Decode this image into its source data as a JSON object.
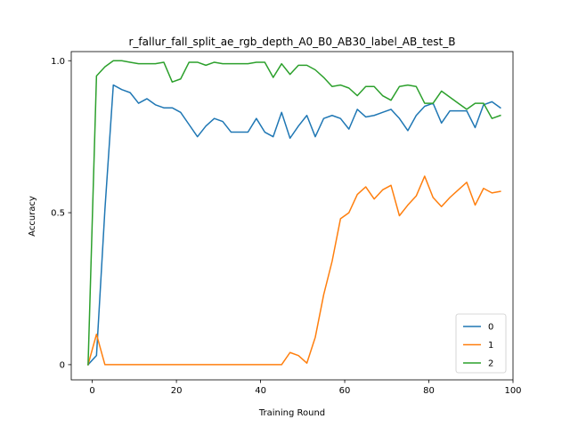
{
  "chart_data": {
    "type": "line",
    "title": "r_fallur_fall_split_ae_rgb_depth_A0_B0_AB30_label_AB_test_B",
    "xlabel": "Training Round",
    "ylabel": "Accuracy",
    "xlim": [
      -5,
      100
    ],
    "ylim": [
      -0.05,
      1.03
    ],
    "xticks": [
      0,
      20,
      40,
      60,
      80,
      100
    ],
    "xtick_labels": [
      "0",
      "20",
      "40",
      "60",
      "80",
      "100"
    ],
    "yticks": [
      0,
      0.5,
      1.0
    ],
    "ytick_labels": [
      "0",
      "0.5",
      "1.0"
    ],
    "grid": false,
    "legend_position": "lower-right",
    "x": [
      -1,
      1,
      3,
      5,
      7,
      9,
      11,
      13,
      15,
      17,
      19,
      21,
      23,
      25,
      27,
      29,
      31,
      33,
      35,
      37,
      39,
      41,
      43,
      45,
      47,
      49,
      51,
      53,
      55,
      57,
      59,
      61,
      63,
      65,
      67,
      69,
      71,
      73,
      75,
      77,
      79,
      81,
      83,
      85,
      87,
      89,
      91,
      93,
      95,
      97
    ],
    "series": [
      {
        "name": "0",
        "color": "#1f77b4",
        "values": [
          0.0,
          0.03,
          0.51,
          0.92,
          0.905,
          0.895,
          0.86,
          0.875,
          0.855,
          0.845,
          0.845,
          0.83,
          0.79,
          0.75,
          0.785,
          0.81,
          0.8,
          0.765,
          0.765,
          0.765,
          0.81,
          0.765,
          0.75,
          0.83,
          0.745,
          0.785,
          0.82,
          0.75,
          0.81,
          0.82,
          0.81,
          0.775,
          0.84,
          0.815,
          0.82,
          0.83,
          0.84,
          0.81,
          0.77,
          0.82,
          0.85,
          0.86,
          0.795,
          0.835,
          0.835,
          0.835,
          0.78,
          0.855,
          0.865,
          0.845
        ]
      },
      {
        "name": "1",
        "color": "#ff7f0e",
        "values": [
          0.0,
          0.1,
          0.0,
          0.0,
          0.0,
          0.0,
          0.0,
          0.0,
          0.0,
          0.0,
          0.0,
          0.0,
          0.0,
          0.0,
          0.0,
          0.0,
          0.0,
          0.0,
          0.0,
          0.0,
          0.0,
          0.0,
          0.0,
          0.0,
          0.04,
          0.03,
          0.005,
          0.09,
          0.23,
          0.34,
          0.48,
          0.5,
          0.56,
          0.585,
          0.545,
          0.575,
          0.59,
          0.49,
          0.525,
          0.555,
          0.62,
          0.55,
          0.52,
          0.55,
          0.575,
          0.6,
          0.525,
          0.58,
          0.565,
          0.57
        ]
      },
      {
        "name": "2",
        "color": "#2ca02c",
        "values": [
          0.0,
          0.95,
          0.98,
          1.0,
          1.0,
          0.995,
          0.99,
          0.99,
          0.99,
          0.995,
          0.93,
          0.94,
          0.995,
          0.995,
          0.985,
          0.995,
          0.99,
          0.99,
          0.99,
          0.99,
          0.995,
          0.995,
          0.945,
          0.99,
          0.955,
          0.985,
          0.985,
          0.97,
          0.945,
          0.915,
          0.92,
          0.91,
          0.885,
          0.915,
          0.915,
          0.885,
          0.87,
          0.915,
          0.92,
          0.915,
          0.86,
          0.86,
          0.9,
          0.88,
          0.86,
          0.84,
          0.86,
          0.86,
          0.81,
          0.82
        ]
      }
    ]
  }
}
